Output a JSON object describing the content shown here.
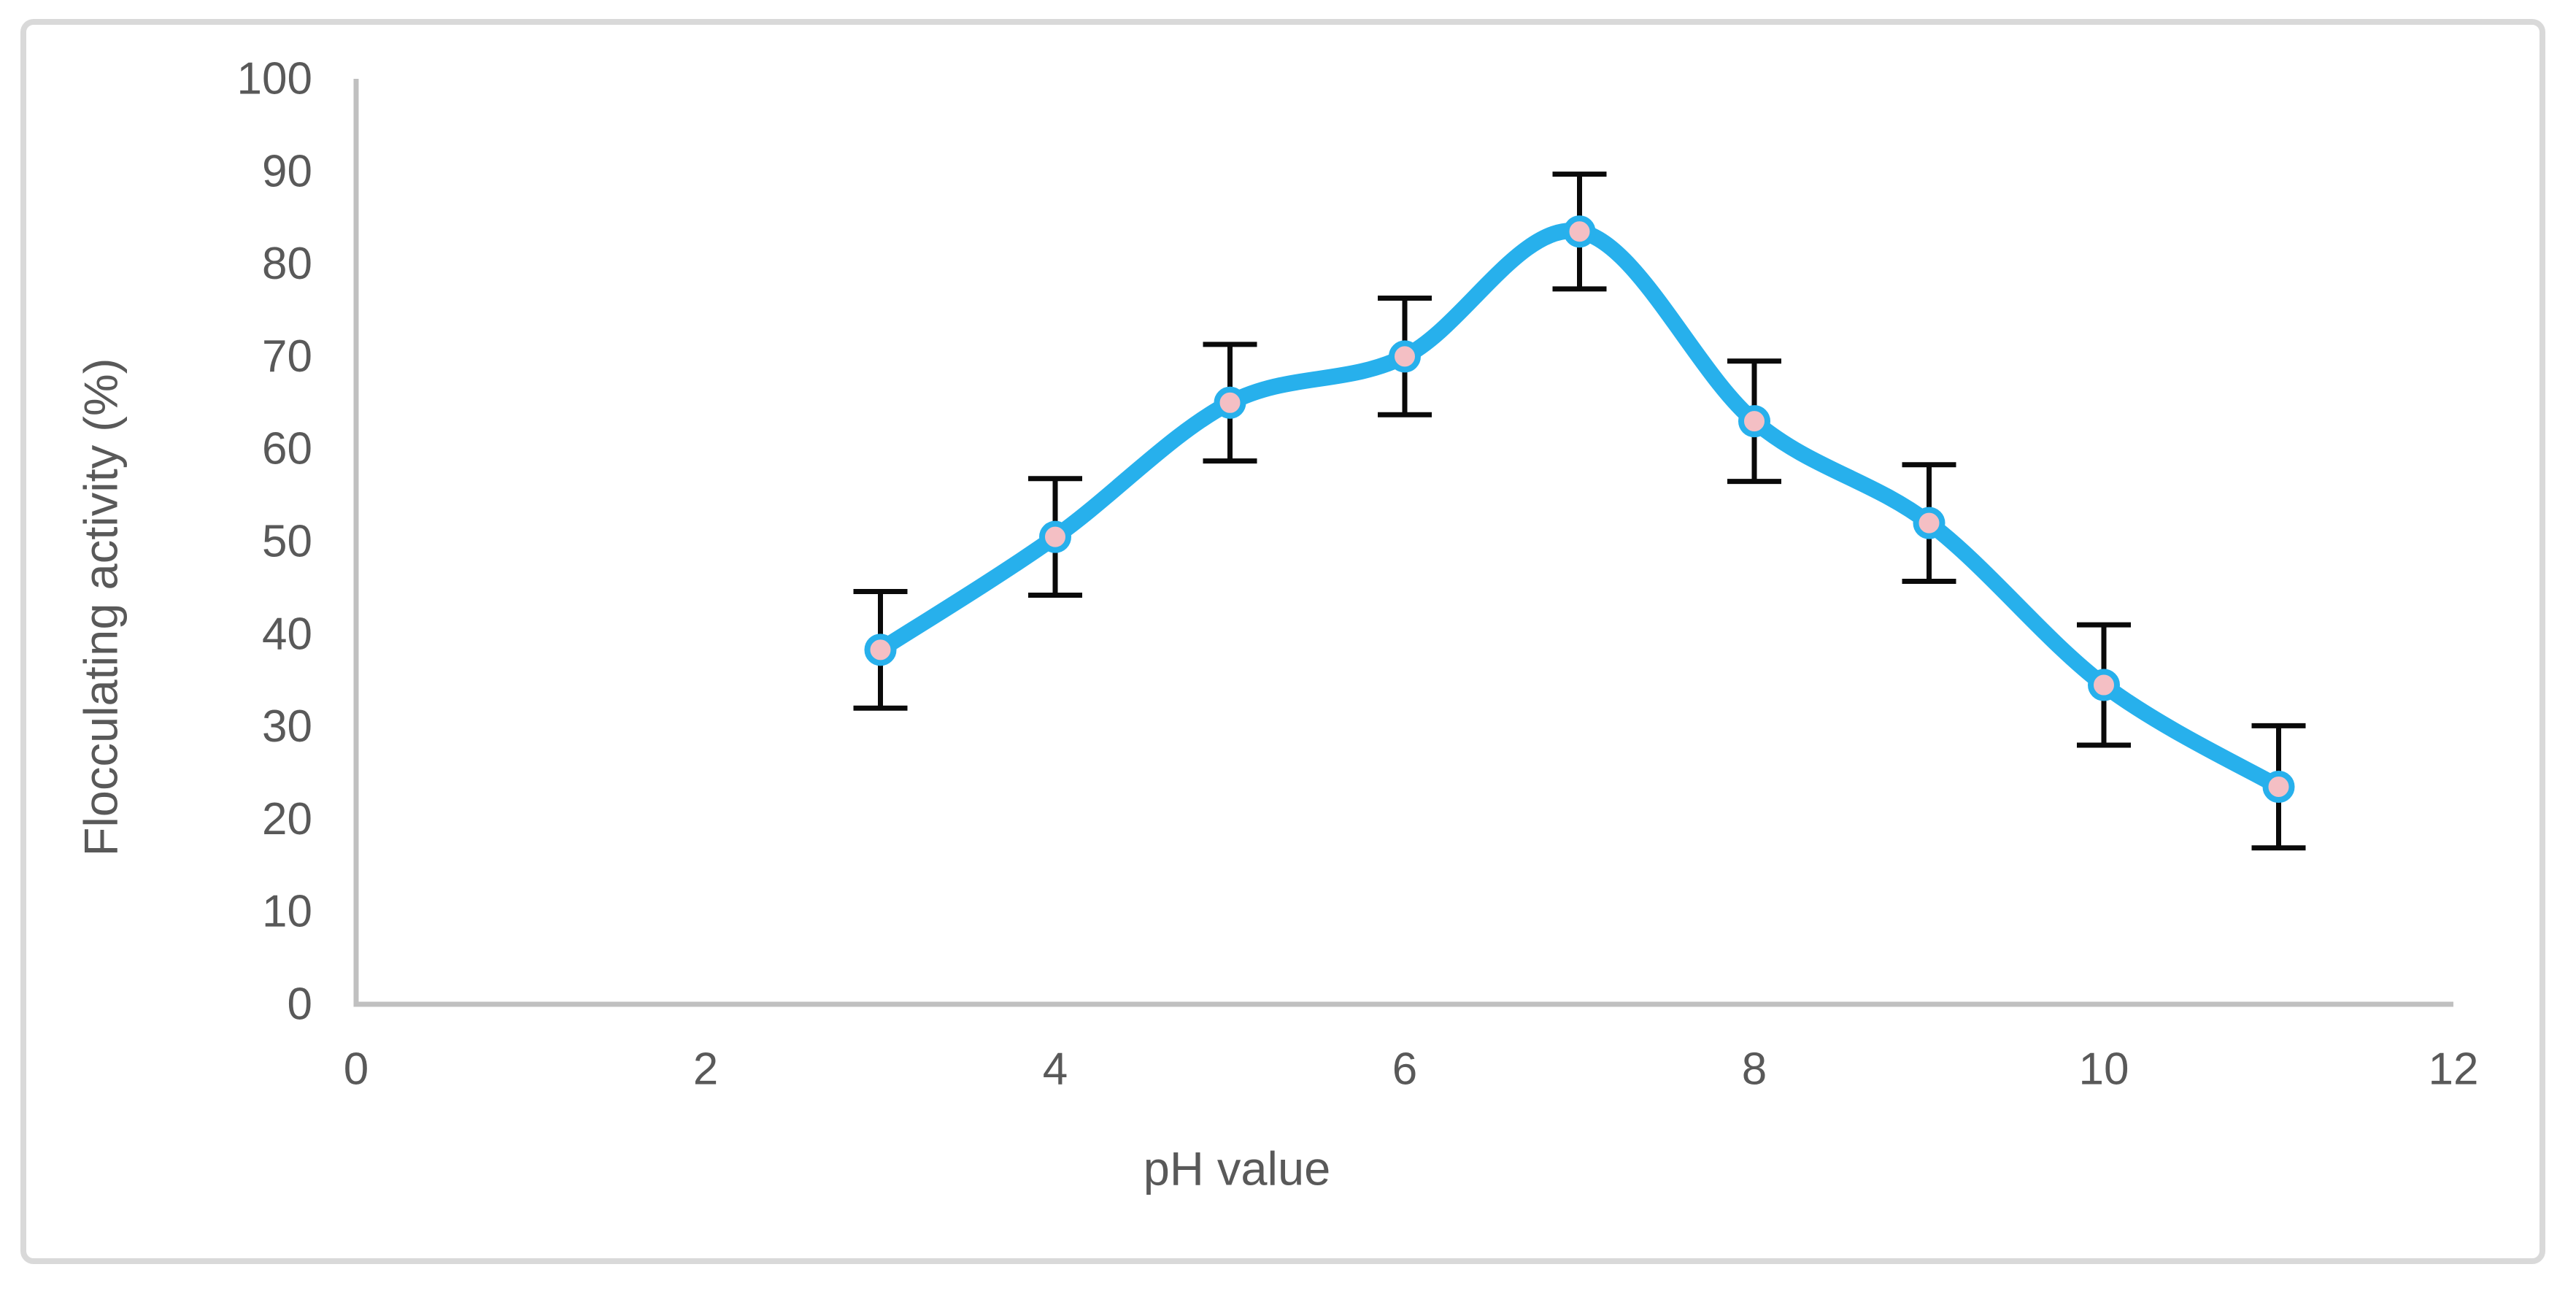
{
  "figure": {
    "background": "#FFFFFF",
    "border_color": "#D9D9D9"
  },
  "chart_data": {
    "type": "line",
    "title": "",
    "xlabel": "pH value",
    "ylabel": "Flocculating activity (%)",
    "x": [
      3,
      4,
      5,
      6,
      7,
      8,
      9,
      10,
      11
    ],
    "series": [
      {
        "name": "Flocculating activity (%)",
        "values": [
          38.3,
          50.5,
          65,
          70,
          83.5,
          63,
          52,
          34.5,
          23.5
        ],
        "errors": [
          6.3,
          6.3,
          6.3,
          6.3,
          6.2,
          6.5,
          6.3,
          6.5,
          6.6
        ]
      }
    ],
    "xlim": [
      0,
      12
    ],
    "ylim": [
      0,
      100
    ],
    "x_ticks": [
      0,
      2,
      4,
      6,
      8,
      10,
      12
    ],
    "y_ticks": [
      0,
      10,
      20,
      30,
      40,
      50,
      60,
      70,
      80,
      90,
      100
    ],
    "grid": false,
    "legend": false,
    "smooth": true,
    "marker": "circle",
    "error_bars": true,
    "colors": {
      "line": "#27B0EC",
      "marker_fill": "#F4BFC4",
      "marker_ring": "#27B0EC",
      "error_bar": "#0A0A0A",
      "axis_line": "#C0C0C0",
      "tick_label": "#595959",
      "axis_title": "#595959"
    }
  }
}
